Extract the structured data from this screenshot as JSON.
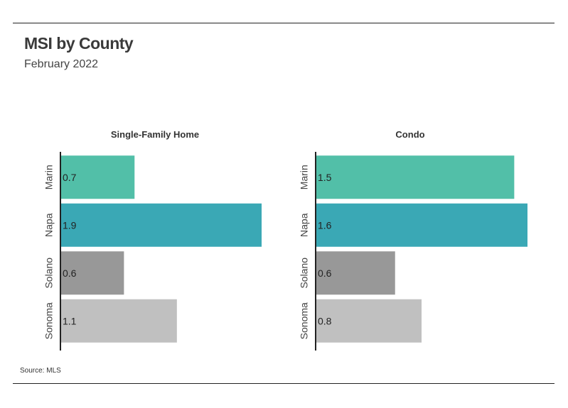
{
  "title": "MSI by County",
  "subtitle": "February 2022",
  "source": "Source:  MLS",
  "chart_data": [
    {
      "type": "bar",
      "orientation": "horizontal",
      "title": "Single-Family Home",
      "categories": [
        "Marin",
        "Napa",
        "Solano",
        "Sonoma"
      ],
      "values": [
        0.7,
        1.9,
        0.6,
        1.1
      ],
      "value_labels": [
        "0.7",
        "1.9",
        "0.6",
        "1.1"
      ],
      "colors": [
        "#52bfa8",
        "#3aa8b5",
        "#989898",
        "#c0c0c0"
      ],
      "xlim": [
        0,
        1.9
      ],
      "grid": false,
      "legend": "none"
    },
    {
      "type": "bar",
      "orientation": "horizontal",
      "title": "Condo",
      "categories": [
        "Marin",
        "Napa",
        "Solano",
        "Sonoma"
      ],
      "values": [
        1.5,
        1.6,
        0.6,
        0.8
      ],
      "value_labels": [
        "1.5",
        "1.6",
        "0.6",
        "0.8"
      ],
      "colors": [
        "#52bfa8",
        "#3aa8b5",
        "#989898",
        "#c0c0c0"
      ],
      "xlim": [
        0,
        1.6
      ],
      "grid": false,
      "legend": "none"
    }
  ]
}
